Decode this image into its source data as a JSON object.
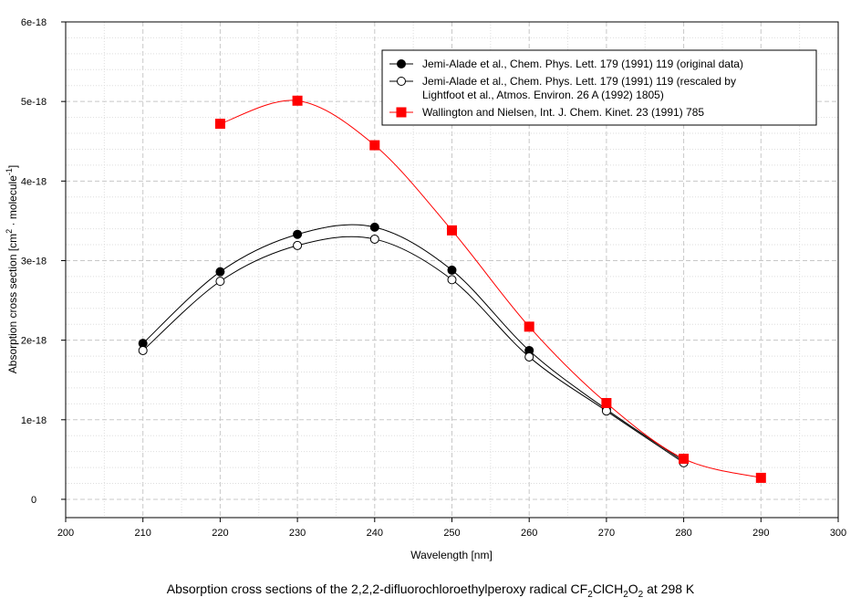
{
  "chart_data": {
    "type": "line",
    "title": "",
    "xlabel": "Wavelength [nm]",
    "ylabel": {
      "main": "Absorption cross section [cm",
      "sup1": "2",
      "mid": " · molecule",
      "sup2": "-1",
      "end": "]"
    },
    "xlim": [
      200,
      300
    ],
    "ylim": [
      -2.3e-19,
      6e-18
    ],
    "x_ticks": [
      200,
      210,
      220,
      230,
      240,
      250,
      260,
      270,
      280,
      290,
      300
    ],
    "y_ticks": [
      0,
      1e-18,
      2e-18,
      3e-18,
      4e-18,
      5e-18,
      6e-18
    ],
    "y_tick_labels": [
      "0",
      "1e-18",
      "2e-18",
      "3e-18",
      "4e-18",
      "5e-18",
      "6e-18"
    ],
    "grid": true,
    "legend_position": "top-right",
    "series": [
      {
        "name": "Jemi-Alade et al., Chem. Phys. Lett. 179 (1991) 119 (original data)",
        "legend_lines": [
          "Jemi-Alade et al., Chem. Phys. Lett. 179 (1991) 119 (original data)"
        ],
        "color": "#000000",
        "marker": "filled-circle",
        "x": [
          210,
          220,
          230,
          240,
          250,
          260,
          270,
          280
        ],
        "y": [
          1.96e-18,
          2.86e-18,
          3.33e-18,
          3.42e-18,
          2.88e-18,
          1.87e-18,
          1.13e-18,
          4.8e-19
        ]
      },
      {
        "name": "Jemi-Alade et al., Chem. Phys. Lett. 179 (1991) 119 (rescaled by Lightfoot et al., Atmos. Environ. 26 A (1992) 1805)",
        "legend_lines": [
          "Jemi-Alade et al., Chem. Phys. Lett. 179 (1991) 119 (rescaled by",
          "Lightfoot et al., Atmos. Environ. 26 A (1992) 1805)"
        ],
        "color": "#000000",
        "marker": "open-circle",
        "x": [
          210,
          220,
          230,
          240,
          250,
          260,
          270,
          280
        ],
        "y": [
          1.87e-18,
          2.74e-18,
          3.19e-18,
          3.27e-18,
          2.76e-18,
          1.79e-18,
          1.11e-18,
          4.6e-19
        ]
      },
      {
        "name": "Wallington and Nielsen, Int. J. Chem. Kinet. 23 (1991) 785",
        "legend_lines": [
          "Wallington and Nielsen, Int. J. Chem. Kinet. 23 (1991) 785"
        ],
        "color": "#ff0000",
        "marker": "filled-square",
        "x": [
          220,
          230,
          240,
          250,
          260,
          270,
          280,
          290
        ],
        "y": [
          4.72e-18,
          5.01e-18,
          4.45e-18,
          3.38e-18,
          2.17e-18,
          1.21e-18,
          5.1e-19,
          2.7e-19
        ]
      }
    ]
  },
  "caption": {
    "prefix": "Absorption cross sections of the 2,2,2-difluorochloroethylperoxy radical CF",
    "sub1": "2",
    "mid1": "ClCH",
    "sub2": "2",
    "mid2": "O",
    "sub3": "2",
    "suffix": " at 298 K"
  }
}
